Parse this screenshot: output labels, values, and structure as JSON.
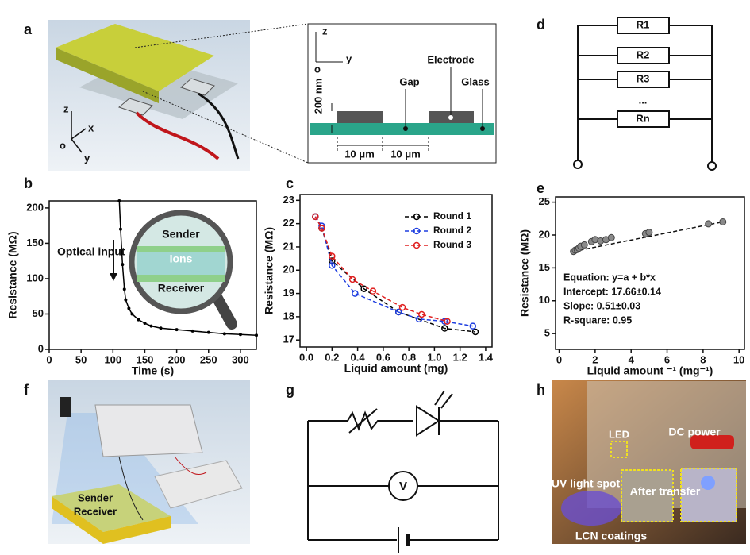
{
  "panel_labels": [
    "a",
    "b",
    "c",
    "d",
    "e",
    "f",
    "g",
    "h"
  ],
  "panel_a": {
    "axes_3d": [
      "z",
      "x",
      "o",
      "y"
    ],
    "inset": {
      "axes": [
        "z",
        "o",
        "y"
      ],
      "labels": [
        "Electrode",
        "Gap",
        "Glass"
      ],
      "thickness": "200 nm",
      "widths": [
        "10 μm",
        "10 μm"
      ]
    }
  },
  "panel_d": {
    "resistors": [
      "R1",
      "R2",
      "R3",
      "...",
      "Rn"
    ]
  },
  "panel_f": {
    "labels": [
      "Sender",
      "Receiver"
    ]
  },
  "panel_g": {
    "meter": "V"
  },
  "panel_h": {
    "labels": [
      "LED",
      "DC power",
      "UV light spot",
      "After transfer",
      "LCN coatings"
    ]
  },
  "chart_data": [
    {
      "type": "line",
      "xlabel": "Time (s)",
      "ylabel": "Resistance (MΩ)",
      "color": "#000000",
      "x": [
        110,
        112,
        115,
        118,
        120,
        125,
        130,
        140,
        150,
        160,
        175,
        200,
        225,
        250,
        275,
        300,
        325
      ],
      "values": [
        210,
        170,
        120,
        85,
        70,
        58,
        50,
        42,
        37,
        33,
        30,
        28,
        26,
        24,
        22,
        21,
        20
      ],
      "xlim": [
        0,
        325
      ],
      "xticks": [
        0,
        50,
        100,
        150,
        200,
        250,
        300
      ],
      "ylim": [
        0,
        210
      ],
      "yticks": [
        0,
        50,
        100,
        150,
        200
      ],
      "annotations": [
        "Optical input"
      ],
      "inset_labels": [
        "Sender",
        "Ions",
        "Receiver"
      ]
    },
    {
      "type": "scatter",
      "xlabel": "Liquid amount (mg)",
      "ylabel": "Resistance (MΩ)",
      "legend": "upper right",
      "series": [
        {
          "name": "Round 1",
          "color": "#000000",
          "x": [
            0.07,
            0.12,
            0.2,
            0.45,
            0.72,
            1.08,
            1.32
          ],
          "values": [
            22.3,
            21.8,
            20.4,
            19.2,
            18.2,
            17.5,
            17.35
          ]
        },
        {
          "name": "Round 2",
          "color": "#1f3fe0",
          "x": [
            0.07,
            0.12,
            0.2,
            0.38,
            0.72,
            0.88,
            1.08,
            1.3
          ],
          "values": [
            22.3,
            21.9,
            20.2,
            19.0,
            18.2,
            17.9,
            17.8,
            17.6
          ]
        },
        {
          "name": "Round 3",
          "color": "#e02020",
          "x": [
            0.07,
            0.12,
            0.2,
            0.36,
            0.52,
            0.75,
            0.9,
            1.1
          ],
          "values": [
            22.3,
            21.8,
            20.6,
            19.6,
            19.1,
            18.4,
            18.1,
            17.8
          ]
        }
      ],
      "xlim": [
        -0.05,
        1.45
      ],
      "xticks": [
        {
          "value": 0,
          "label": "0.0"
        },
        0.2,
        0.4,
        0.6,
        0.8,
        {
          "value": 1,
          "label": "1.0"
        },
        1.2,
        1.4
      ],
      "ylim": [
        16.7,
        23.25
      ],
      "yticks": [
        17,
        18,
        19,
        20,
        21,
        22,
        23
      ]
    },
    {
      "type": "scatter",
      "xlabel": "Liquid amount ⁻¹ (mg⁻¹)",
      "ylabel": "Resistance (MΩ)",
      "color": "#8a8a8a",
      "x": [
        0.8,
        0.9,
        1.0,
        1.1,
        1.2,
        1.4,
        1.8,
        2.0,
        2.3,
        2.6,
        2.9,
        4.8,
        5.0,
        8.3,
        9.1
      ],
      "values": [
        17.5,
        17.7,
        17.8,
        18.0,
        18.3,
        18.5,
        19.0,
        19.3,
        19.1,
        19.3,
        19.6,
        20.2,
        20.4,
        21.7,
        22.0
      ],
      "xlim": [
        -0.2,
        10.3
      ],
      "xticks": [
        0,
        2,
        4,
        6,
        8,
        10
      ],
      "ylim": [
        2.6,
        25.8
      ],
      "yticks": [
        5,
        10,
        15,
        20,
        25
      ],
      "annotations": [
        "Equation: y=a + b*x",
        "Intercept: 17.66±0.14",
        "Slope: 0.51±0.03",
        "R-square: 0.95"
      ]
    }
  ]
}
